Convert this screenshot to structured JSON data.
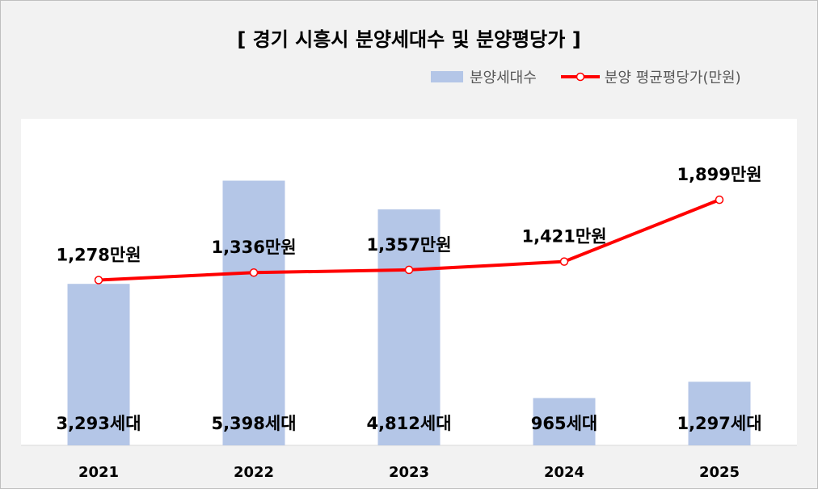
{
  "chart_data": {
    "type": "bar+line",
    "title": "[ 경기 시흥시 분양세대수 및 분양평당가 ]",
    "categories": [
      "2021",
      "2022",
      "2023",
      "2024",
      "2025"
    ],
    "series": [
      {
        "name": "분양세대수",
        "type": "bar",
        "values": [
          3293,
          5398,
          4812,
          965,
          1297
        ],
        "labels": [
          "3,293세대",
          "5,398세대",
          "4,812세대",
          "965세대",
          "1,297세대"
        ],
        "color": "#b4c6e7"
      },
      {
        "name": "분양 평균평당가(만원)",
        "type": "line",
        "values": [
          1278,
          1336,
          1357,
          1421,
          1899
        ],
        "labels": [
          "1,278만원",
          "1,336만원",
          "1,357만원",
          "1,421만원",
          "1,899만원"
        ],
        "color": "#ff0000"
      }
    ],
    "bar_axis_range": [
      0,
      6000
    ],
    "line_axis_range": [
      0,
      2300
    ],
    "legend_position": "top-right",
    "grid": false
  }
}
